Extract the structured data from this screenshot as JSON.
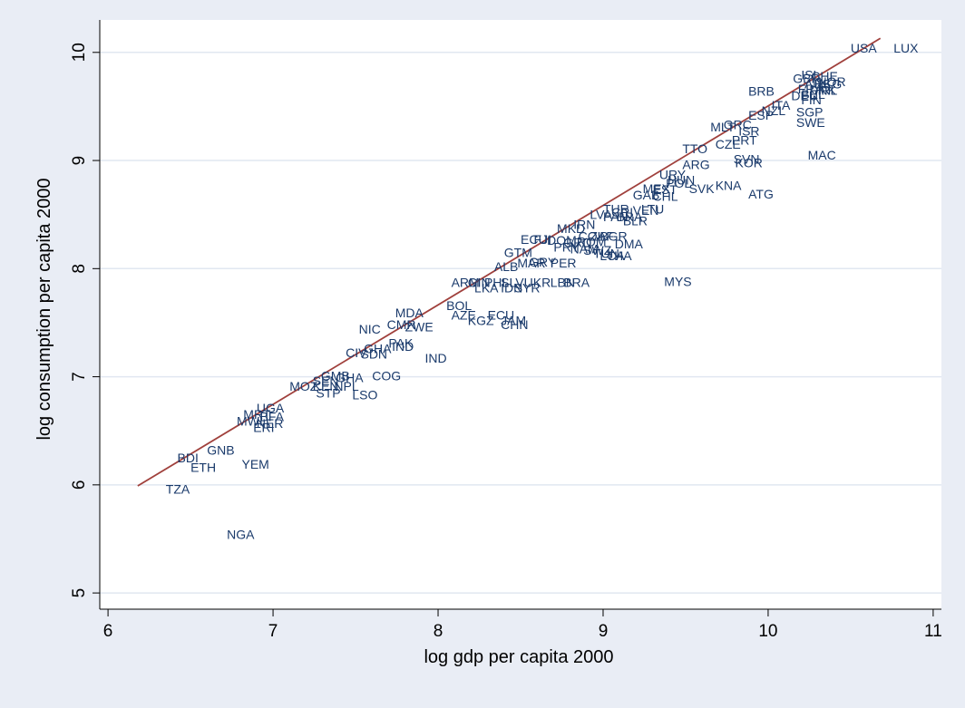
{
  "chart_data": {
    "type": "scatter",
    "title": "",
    "xlabel": "log gdp per capita 2000",
    "ylabel": "log consumption per capita 2000",
    "xlim": [
      5.95,
      11.05
    ],
    "ylim": [
      4.85,
      10.3
    ],
    "xticks": [
      "6",
      "7",
      "8",
      "9",
      "10",
      "11"
    ],
    "yticks": [
      "5",
      "6",
      "7",
      "8",
      "9",
      "10"
    ],
    "grid": true,
    "legend": "none",
    "colors": {
      "background": "#e9edf5",
      "plot": "#ffffff",
      "gridline": "#e1e7f1",
      "marker_label": "#1a3a6b",
      "fit_line": "#a0403c"
    },
    "fit_line": {
      "x": [
        6.18,
        10.68
      ],
      "y": [
        5.99,
        10.13
      ]
    },
    "points": [
      {
        "x": 10.5,
        "y": 10.03,
        "label": "USA"
      },
      {
        "x": 10.76,
        "y": 10.03,
        "label": "LUX"
      },
      {
        "x": 10.15,
        "y": 9.75,
        "label": "GBR"
      },
      {
        "x": 10.2,
        "y": 9.78,
        "label": "ISL"
      },
      {
        "x": 10.26,
        "y": 9.77,
        "label": "CHE"
      },
      {
        "x": 10.3,
        "y": 9.72,
        "label": "NOR"
      },
      {
        "x": 10.22,
        "y": 9.7,
        "label": "AUS"
      },
      {
        "x": 10.28,
        "y": 9.7,
        "label": "HKG"
      },
      {
        "x": 10.18,
        "y": 9.65,
        "label": "FRA"
      },
      {
        "x": 10.25,
        "y": 9.64,
        "label": "DNK"
      },
      {
        "x": 10.3,
        "y": 9.64,
        "label": "IRL"
      },
      {
        "x": 10.14,
        "y": 9.59,
        "label": "DEU"
      },
      {
        "x": 10.2,
        "y": 9.6,
        "label": "BEL"
      },
      {
        "x": 10.2,
        "y": 9.55,
        "label": "FIN"
      },
      {
        "x": 9.88,
        "y": 9.63,
        "label": "BRB"
      },
      {
        "x": 10.02,
        "y": 9.5,
        "label": "ITA"
      },
      {
        "x": 10.17,
        "y": 9.44,
        "label": "SGP"
      },
      {
        "x": 9.96,
        "y": 9.45,
        "label": "NZL"
      },
      {
        "x": 9.88,
        "y": 9.41,
        "label": "ESP"
      },
      {
        "x": 10.17,
        "y": 9.34,
        "label": "SWE"
      },
      {
        "x": 9.65,
        "y": 9.3,
        "label": "MLT"
      },
      {
        "x": 9.73,
        "y": 9.32,
        "label": "GRC"
      },
      {
        "x": 9.82,
        "y": 9.26,
        "label": "ISR"
      },
      {
        "x": 9.78,
        "y": 9.18,
        "label": "PRT"
      },
      {
        "x": 9.68,
        "y": 9.14,
        "label": "CZE"
      },
      {
        "x": 9.48,
        "y": 9.1,
        "label": "TTO"
      },
      {
        "x": 10.24,
        "y": 9.04,
        "label": "MAC"
      },
      {
        "x": 9.79,
        "y": 9.0,
        "label": "SVN"
      },
      {
        "x": 9.8,
        "y": 8.97,
        "label": "KOR"
      },
      {
        "x": 9.48,
        "y": 8.95,
        "label": "ARG"
      },
      {
        "x": 9.34,
        "y": 8.86,
        "label": "URY"
      },
      {
        "x": 9.39,
        "y": 8.81,
        "label": "HUN"
      },
      {
        "x": 9.38,
        "y": 8.78,
        "label": "POL"
      },
      {
        "x": 9.52,
        "y": 8.73,
        "label": "SVK"
      },
      {
        "x": 9.68,
        "y": 8.76,
        "label": "KNA"
      },
      {
        "x": 9.88,
        "y": 8.68,
        "label": "ATG"
      },
      {
        "x": 9.24,
        "y": 8.73,
        "label": "MEX"
      },
      {
        "x": 9.3,
        "y": 8.72,
        "label": "EST"
      },
      {
        "x": 9.18,
        "y": 8.67,
        "label": "GAB"
      },
      {
        "x": 9.3,
        "y": 8.66,
        "label": "CHL"
      },
      {
        "x": 9.23,
        "y": 8.54,
        "label": "LTU"
      },
      {
        "x": 9.18,
        "y": 8.53,
        "label": "VEN"
      },
      {
        "x": 9.0,
        "y": 8.54,
        "label": "TUR"
      },
      {
        "x": 9.05,
        "y": 8.51,
        "label": "CRI"
      },
      {
        "x": 9.08,
        "y": 8.47,
        "label": "BRA"
      },
      {
        "x": 9.0,
        "y": 8.47,
        "label": "PAN"
      },
      {
        "x": 9.12,
        "y": 8.43,
        "label": "BLR"
      },
      {
        "x": 8.92,
        "y": 8.49,
        "label": "LVA"
      },
      {
        "x": 8.72,
        "y": 8.36,
        "label": "MKD"
      },
      {
        "x": 8.82,
        "y": 8.4,
        "label": "IRN"
      },
      {
        "x": 8.85,
        "y": 8.29,
        "label": "COL"
      },
      {
        "x": 8.92,
        "y": 8.29,
        "label": "ZAF"
      },
      {
        "x": 8.98,
        "y": 8.29,
        "label": "BGR"
      },
      {
        "x": 8.5,
        "y": 8.26,
        "label": "ECU"
      },
      {
        "x": 8.58,
        "y": 8.26,
        "label": "FJI"
      },
      {
        "x": 8.66,
        "y": 8.25,
        "label": "DOM"
      },
      {
        "x": 8.76,
        "y": 8.23,
        "label": "GRD"
      },
      {
        "x": 8.84,
        "y": 8.24,
        "label": "ROM"
      },
      {
        "x": 9.07,
        "y": 8.22,
        "label": "DMA"
      },
      {
        "x": 8.7,
        "y": 8.19,
        "label": "PRY"
      },
      {
        "x": 8.8,
        "y": 8.17,
        "label": "NAM"
      },
      {
        "x": 8.88,
        "y": 8.16,
        "label": "SWZ"
      },
      {
        "x": 8.94,
        "y": 8.13,
        "label": "TUN"
      },
      {
        "x": 8.98,
        "y": 8.11,
        "label": "LCA"
      },
      {
        "x": 9.02,
        "y": 8.11,
        "label": "THA"
      },
      {
        "x": 8.4,
        "y": 8.14,
        "label": "GTM"
      },
      {
        "x": 8.34,
        "y": 8.01,
        "label": "ALB"
      },
      {
        "x": 8.48,
        "y": 8.04,
        "label": "MAR"
      },
      {
        "x": 8.55,
        "y": 8.05,
        "label": "GRY"
      },
      {
        "x": 8.68,
        "y": 8.04,
        "label": "PER"
      },
      {
        "x": 9.37,
        "y": 7.87,
        "label": "MYS"
      },
      {
        "x": 8.08,
        "y": 7.86,
        "label": "ARM"
      },
      {
        "x": 8.18,
        "y": 7.86,
        "label": "GIN"
      },
      {
        "x": 8.28,
        "y": 7.86,
        "label": "PHL"
      },
      {
        "x": 8.38,
        "y": 7.86,
        "label": "SLV"
      },
      {
        "x": 8.52,
        "y": 7.86,
        "label": "UKR"
      },
      {
        "x": 8.68,
        "y": 7.86,
        "label": "LBN"
      },
      {
        "x": 8.76,
        "y": 7.86,
        "label": "BRA"
      },
      {
        "x": 8.22,
        "y": 7.81,
        "label": "LKA"
      },
      {
        "x": 8.38,
        "y": 7.81,
        "label": "IDN"
      },
      {
        "x": 8.46,
        "y": 7.81,
        "label": "SYR"
      },
      {
        "x": 8.05,
        "y": 7.65,
        "label": "BOL"
      },
      {
        "x": 7.74,
        "y": 7.58,
        "label": "MDA"
      },
      {
        "x": 8.08,
        "y": 7.56,
        "label": "AZE"
      },
      {
        "x": 8.3,
        "y": 7.56,
        "label": "ECU"
      },
      {
        "x": 8.18,
        "y": 7.51,
        "label": "KGZ"
      },
      {
        "x": 8.38,
        "y": 7.51,
        "label": "JAM"
      },
      {
        "x": 8.38,
        "y": 7.47,
        "label": "CHN"
      },
      {
        "x": 7.69,
        "y": 7.47,
        "label": "CMR"
      },
      {
        "x": 7.52,
        "y": 7.43,
        "label": "NIC"
      },
      {
        "x": 7.8,
        "y": 7.45,
        "label": "ZWE"
      },
      {
        "x": 7.7,
        "y": 7.3,
        "label": "PAK"
      },
      {
        "x": 7.72,
        "y": 7.27,
        "label": "IND"
      },
      {
        "x": 7.55,
        "y": 7.25,
        "label": "GHA"
      },
      {
        "x": 7.44,
        "y": 7.21,
        "label": "CIV"
      },
      {
        "x": 7.53,
        "y": 7.2,
        "label": "SDN"
      },
      {
        "x": 7.92,
        "y": 7.16,
        "label": "IND"
      },
      {
        "x": 7.6,
        "y": 7.0,
        "label": "COG"
      },
      {
        "x": 7.29,
        "y": 7.0,
        "label": "GMB"
      },
      {
        "x": 7.38,
        "y": 6.98,
        "label": "GHA"
      },
      {
        "x": 7.24,
        "y": 6.95,
        "label": "SEN"
      },
      {
        "x": 7.1,
        "y": 6.9,
        "label": "MOZ"
      },
      {
        "x": 7.24,
        "y": 6.9,
        "label": "KEN"
      },
      {
        "x": 7.37,
        "y": 6.9,
        "label": "NPL"
      },
      {
        "x": 7.26,
        "y": 6.84,
        "label": "STP"
      },
      {
        "x": 7.48,
        "y": 6.82,
        "label": "LSO"
      },
      {
        "x": 6.9,
        "y": 6.7,
        "label": "UGA"
      },
      {
        "x": 6.82,
        "y": 6.64,
        "label": "MRT"
      },
      {
        "x": 6.92,
        "y": 6.62,
        "label": "BFA"
      },
      {
        "x": 6.78,
        "y": 6.58,
        "label": "MWI"
      },
      {
        "x": 6.9,
        "y": 6.56,
        "label": "NER"
      },
      {
        "x": 6.88,
        "y": 6.52,
        "label": "ERI"
      },
      {
        "x": 6.42,
        "y": 6.24,
        "label": "BDI"
      },
      {
        "x": 6.6,
        "y": 6.31,
        "label": "GNB"
      },
      {
        "x": 6.5,
        "y": 6.15,
        "label": "ETH"
      },
      {
        "x": 6.81,
        "y": 6.18,
        "label": "YEM"
      },
      {
        "x": 6.35,
        "y": 5.95,
        "label": "TZA"
      },
      {
        "x": 6.72,
        "y": 5.53,
        "label": "NGA"
      }
    ]
  }
}
